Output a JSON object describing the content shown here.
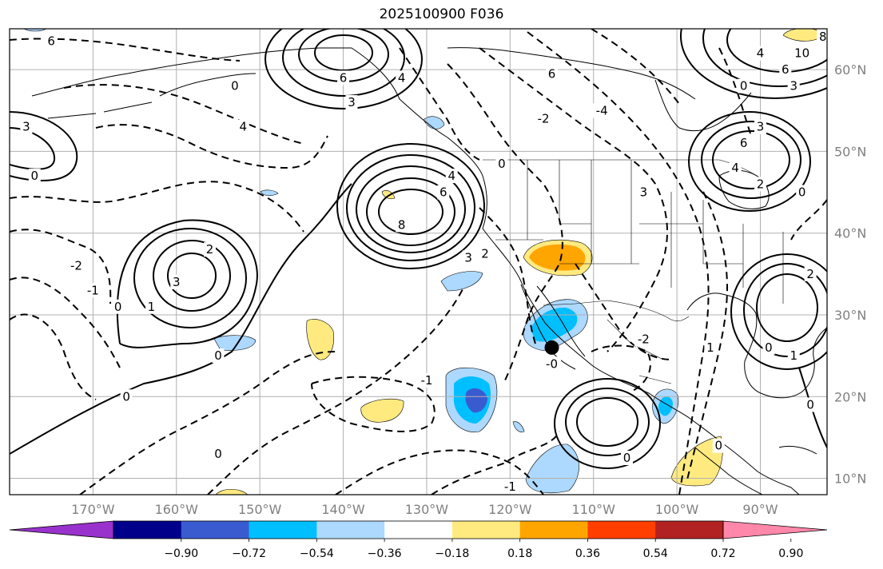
{
  "title": "2025100900 F036",
  "map": {
    "projection": "plate-carree",
    "lon_range": [
      -180,
      -82
    ],
    "lat_range": [
      8,
      65
    ],
    "gridlines": true,
    "lon_ticks": [
      {
        "lon": -170,
        "label": "170°W"
      },
      {
        "lon": -160,
        "label": "160°W"
      },
      {
        "lon": -150,
        "label": "150°W"
      },
      {
        "lon": -140,
        "label": "140°W"
      },
      {
        "lon": -130,
        "label": "130°W"
      },
      {
        "lon": -120,
        "label": "120°W"
      },
      {
        "lon": -110,
        "label": "110°W"
      },
      {
        "lon": -100,
        "label": "100°W"
      },
      {
        "lon": -90,
        "label": "90°W"
      }
    ],
    "lat_ticks": [
      {
        "lat": 10,
        "label": "10°N"
      },
      {
        "lat": 20,
        "label": "20°N"
      },
      {
        "lat": 30,
        "label": "30°N"
      },
      {
        "lat": 40,
        "label": "40°N"
      },
      {
        "lat": 50,
        "label": "50°N"
      },
      {
        "lat": 60,
        "label": "60°N"
      }
    ],
    "marker": {
      "lon": -115,
      "lat": 26,
      "color": "#000000"
    },
    "contour_labels": [
      {
        "text": "6",
        "lon": -175,
        "lat": 63.5
      },
      {
        "text": "3",
        "lon": -178,
        "lat": 53
      },
      {
        "text": "0",
        "lon": -177,
        "lat": 47
      },
      {
        "text": "-2",
        "lon": -172,
        "lat": 36
      },
      {
        "text": "-1",
        "lon": -170,
        "lat": 33
      },
      {
        "text": "0",
        "lon": -167,
        "lat": 31
      },
      {
        "text": "3",
        "lon": -160,
        "lat": 34
      },
      {
        "text": "2",
        "lon": -156,
        "lat": 38
      },
      {
        "text": "1",
        "lon": -163,
        "lat": 31
      },
      {
        "text": "0",
        "lon": -155,
        "lat": 25
      },
      {
        "text": "0",
        "lon": -166,
        "lat": 20
      },
      {
        "text": "0",
        "lon": -155,
        "lat": 13
      },
      {
        "text": "6",
        "lon": -140,
        "lat": 59
      },
      {
        "text": "4",
        "lon": -133,
        "lat": 59
      },
      {
        "text": "3",
        "lon": -139,
        "lat": 56
      },
      {
        "text": "0",
        "lon": -153,
        "lat": 58
      },
      {
        "text": "4",
        "lon": -152,
        "lat": 53
      },
      {
        "text": "4",
        "lon": -127,
        "lat": 47
      },
      {
        "text": "6",
        "lon": -128,
        "lat": 45
      },
      {
        "text": "8",
        "lon": -133,
        "lat": 41
      },
      {
        "text": "3",
        "lon": -125,
        "lat": 37
      },
      {
        "text": "2",
        "lon": -123,
        "lat": 37.5
      },
      {
        "text": "6",
        "lon": -115,
        "lat": 59.5
      },
      {
        "text": "-2",
        "lon": -116,
        "lat": 54
      },
      {
        "text": "-4",
        "lon": -109,
        "lat": 55
      },
      {
        "text": "3",
        "lon": -104,
        "lat": 45
      },
      {
        "text": "0",
        "lon": -121,
        "lat": 48.5
      },
      {
        "text": "-0",
        "lon": -115,
        "lat": 24
      },
      {
        "text": "-1",
        "lon": -130,
        "lat": 22
      },
      {
        "text": "-1",
        "lon": -120,
        "lat": 9
      },
      {
        "text": "-2",
        "lon": -104,
        "lat": 27
      },
      {
        "text": "0",
        "lon": -106,
        "lat": 12.5
      },
      {
        "text": "0",
        "lon": -95,
        "lat": 14
      },
      {
        "text": "1",
        "lon": -96,
        "lat": 26
      },
      {
        "text": "6",
        "lon": -92,
        "lat": 51
      },
      {
        "text": "3",
        "lon": -90,
        "lat": 53
      },
      {
        "text": "4",
        "lon": -93,
        "lat": 48
      },
      {
        "text": "2",
        "lon": -90,
        "lat": 46
      },
      {
        "text": "0",
        "lon": -85,
        "lat": 45
      },
      {
        "text": "10",
        "lon": -85,
        "lat": 62
      },
      {
        "text": "8",
        "lon": -82.5,
        "lat": 64
      },
      {
        "text": "6",
        "lon": -87,
        "lat": 60
      },
      {
        "text": "3",
        "lon": -86,
        "lat": 58
      },
      {
        "text": "4",
        "lon": -90,
        "lat": 62
      },
      {
        "text": "0",
        "lon": -92,
        "lat": 58
      },
      {
        "text": "2",
        "lon": -84,
        "lat": 35
      },
      {
        "text": "0",
        "lon": -89,
        "lat": 26
      },
      {
        "text": "1",
        "lon": -86,
        "lat": 25
      },
      {
        "text": "0",
        "lon": -84,
        "lat": 19
      }
    ]
  },
  "colorbar": {
    "ticks": [
      "−0.90",
      "−0.72",
      "−0.54",
      "−0.36",
      "−0.18",
      "0.18",
      "0.36",
      "0.54",
      "0.72",
      "0.90"
    ],
    "colors": [
      "#9932cc",
      "#00008b",
      "#3a5bd0",
      "#00bfff",
      "#add8ff",
      "#ffffff",
      "#ffea80",
      "#ffa500",
      "#ff3e00",
      "#b22222",
      "#ff88aa"
    ]
  }
}
